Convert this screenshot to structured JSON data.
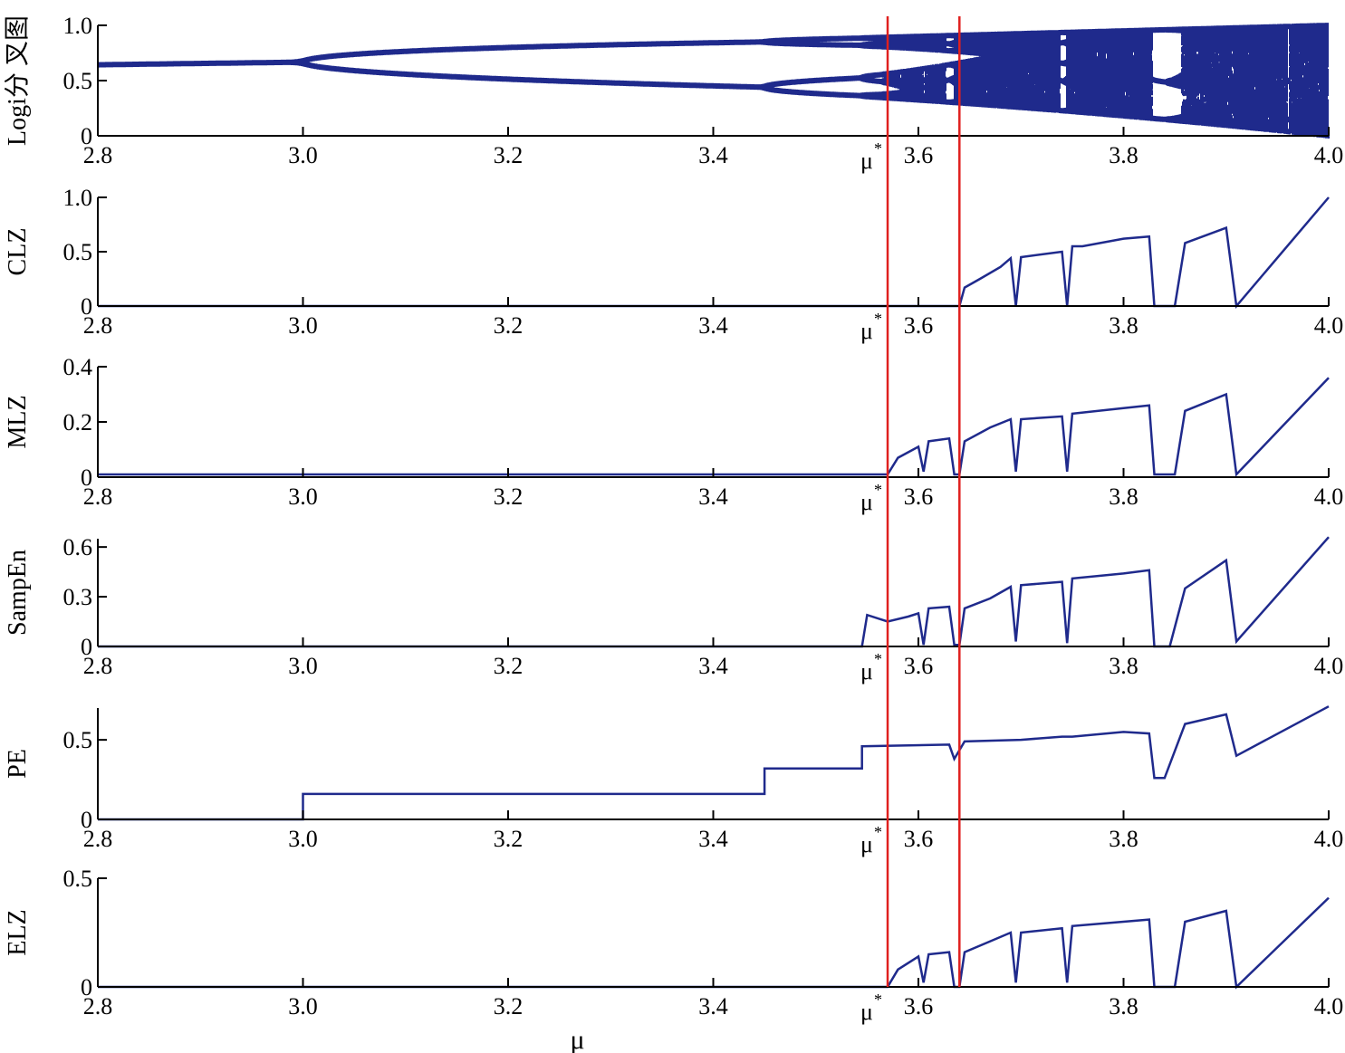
{
  "figure": {
    "xlabel": "μ",
    "mu_star_label": "μ",
    "mu_star_sup": "*"
  },
  "colors": {
    "series": "#1f2a8c",
    "markers": "#e0201e",
    "axis": "#000000"
  },
  "chart_data": [
    {
      "type": "scatter",
      "ylabel": "Logi分 叉图",
      "xlim": [
        2.8,
        4.0
      ],
      "ylim": [
        0,
        1.0
      ],
      "yticks": [
        "0",
        "0.5",
        "1.0"
      ],
      "xticks": [
        "2.8",
        "3.0",
        "3.2",
        "3.4",
        "3.6",
        "3.8",
        "4.0"
      ],
      "series": [
        {
          "values": "bifurcation diagram of the logistic map"
        }
      ]
    },
    {
      "type": "line",
      "ylabel": "CLZ",
      "xlim": [
        2.8,
        4.0
      ],
      "ylim": [
        0,
        1.0
      ],
      "yticks": [
        "0",
        "0.5",
        "1.0"
      ],
      "xticks": [
        "2.8",
        "3.0",
        "3.2",
        "3.4",
        "3.6",
        "3.8",
        "4.0"
      ],
      "x": [
        2.8,
        3.64,
        3.645,
        3.66,
        3.68,
        3.69,
        3.695,
        3.7,
        3.74,
        3.745,
        3.75,
        3.76,
        3.8,
        3.825,
        3.83,
        3.85,
        3.86,
        3.9,
        3.91,
        4.0
      ],
      "values": [
        0.0,
        0.0,
        0.17,
        0.25,
        0.36,
        0.44,
        0.0,
        0.45,
        0.5,
        0.0,
        0.55,
        0.55,
        0.62,
        0.64,
        0.0,
        0.0,
        0.58,
        0.72,
        0.0,
        1.0
      ]
    },
    {
      "type": "line",
      "ylabel": "MLZ",
      "xlim": [
        2.8,
        4.0
      ],
      "ylim": [
        0,
        0.4
      ],
      "yticks": [
        "0",
        "0.2",
        "0.4"
      ],
      "xticks": [
        "2.8",
        "3.0",
        "3.2",
        "3.4",
        "3.6",
        "3.8",
        "4.0"
      ],
      "x": [
        2.8,
        3.57,
        3.58,
        3.6,
        3.605,
        3.61,
        3.63,
        3.635,
        3.64,
        3.645,
        3.67,
        3.69,
        3.695,
        3.7,
        3.74,
        3.745,
        3.75,
        3.8,
        3.825,
        3.83,
        3.85,
        3.86,
        3.9,
        3.91,
        4.0
      ],
      "values": [
        0.01,
        0.01,
        0.07,
        0.11,
        0.02,
        0.13,
        0.14,
        0.01,
        0.01,
        0.13,
        0.18,
        0.21,
        0.02,
        0.21,
        0.22,
        0.02,
        0.23,
        0.25,
        0.26,
        0.01,
        0.01,
        0.24,
        0.3,
        0.01,
        0.36
      ]
    },
    {
      "type": "line",
      "ylabel": "SampEn",
      "xlim": [
        2.8,
        4.0
      ],
      "ylim": [
        0,
        0.65
      ],
      "yticks": [
        "0",
        "0.3",
        "0.6"
      ],
      "xticks": [
        "2.8",
        "3.0",
        "3.2",
        "3.4",
        "3.6",
        "3.8",
        "4.0"
      ],
      "x": [
        2.8,
        3.545,
        3.55,
        3.57,
        3.59,
        3.6,
        3.605,
        3.61,
        3.63,
        3.635,
        3.64,
        3.645,
        3.67,
        3.69,
        3.695,
        3.7,
        3.74,
        3.745,
        3.75,
        3.8,
        3.825,
        3.83,
        3.845,
        3.86,
        3.9,
        3.91,
        4.0
      ],
      "values": [
        0.0,
        0.0,
        0.19,
        0.15,
        0.18,
        0.2,
        0.01,
        0.23,
        0.24,
        0.01,
        0.01,
        0.23,
        0.29,
        0.36,
        0.03,
        0.37,
        0.39,
        0.02,
        0.41,
        0.44,
        0.46,
        0.0,
        0.0,
        0.35,
        0.52,
        0.03,
        0.66
      ]
    },
    {
      "type": "line",
      "ylabel": "PE",
      "xlim": [
        2.8,
        4.0
      ],
      "ylim": [
        0,
        0.7
      ],
      "yticks": [
        "0",
        "0.5"
      ],
      "xticks": [
        "2.8",
        "3.0",
        "3.2",
        "3.4",
        "3.6",
        "3.8",
        "4.0"
      ],
      "x": [
        2.8,
        3.0,
        3.0,
        3.45,
        3.45,
        3.545,
        3.545,
        3.63,
        3.635,
        3.645,
        3.7,
        3.74,
        3.75,
        3.8,
        3.825,
        3.83,
        3.84,
        3.86,
        3.9,
        3.91,
        4.0
      ],
      "values": [
        0.0,
        0.0,
        0.16,
        0.16,
        0.32,
        0.32,
        0.46,
        0.47,
        0.38,
        0.49,
        0.5,
        0.52,
        0.52,
        0.55,
        0.54,
        0.26,
        0.26,
        0.6,
        0.66,
        0.4,
        0.71
      ]
    },
    {
      "type": "line",
      "ylabel": "ELZ",
      "xlim": [
        2.8,
        4.0
      ],
      "ylim": [
        0,
        0.5
      ],
      "yticks": [
        "0",
        "0.5"
      ],
      "xticks": [
        "2.8",
        "3.0",
        "3.2",
        "3.4",
        "3.6",
        "3.8",
        "4.0"
      ],
      "x": [
        2.8,
        3.57,
        3.58,
        3.6,
        3.605,
        3.61,
        3.63,
        3.635,
        3.64,
        3.645,
        3.67,
        3.69,
        3.695,
        3.7,
        3.74,
        3.745,
        3.75,
        3.8,
        3.825,
        3.83,
        3.85,
        3.86,
        3.9,
        3.91,
        4.0
      ],
      "values": [
        0.0,
        0.0,
        0.08,
        0.14,
        0.02,
        0.15,
        0.16,
        0.0,
        0.0,
        0.16,
        0.21,
        0.25,
        0.02,
        0.25,
        0.27,
        0.02,
        0.28,
        0.3,
        0.31,
        0.0,
        0.0,
        0.3,
        0.35,
        0.0,
        0.41
      ]
    }
  ],
  "vertical_markers": [
    3.57,
    3.64
  ]
}
